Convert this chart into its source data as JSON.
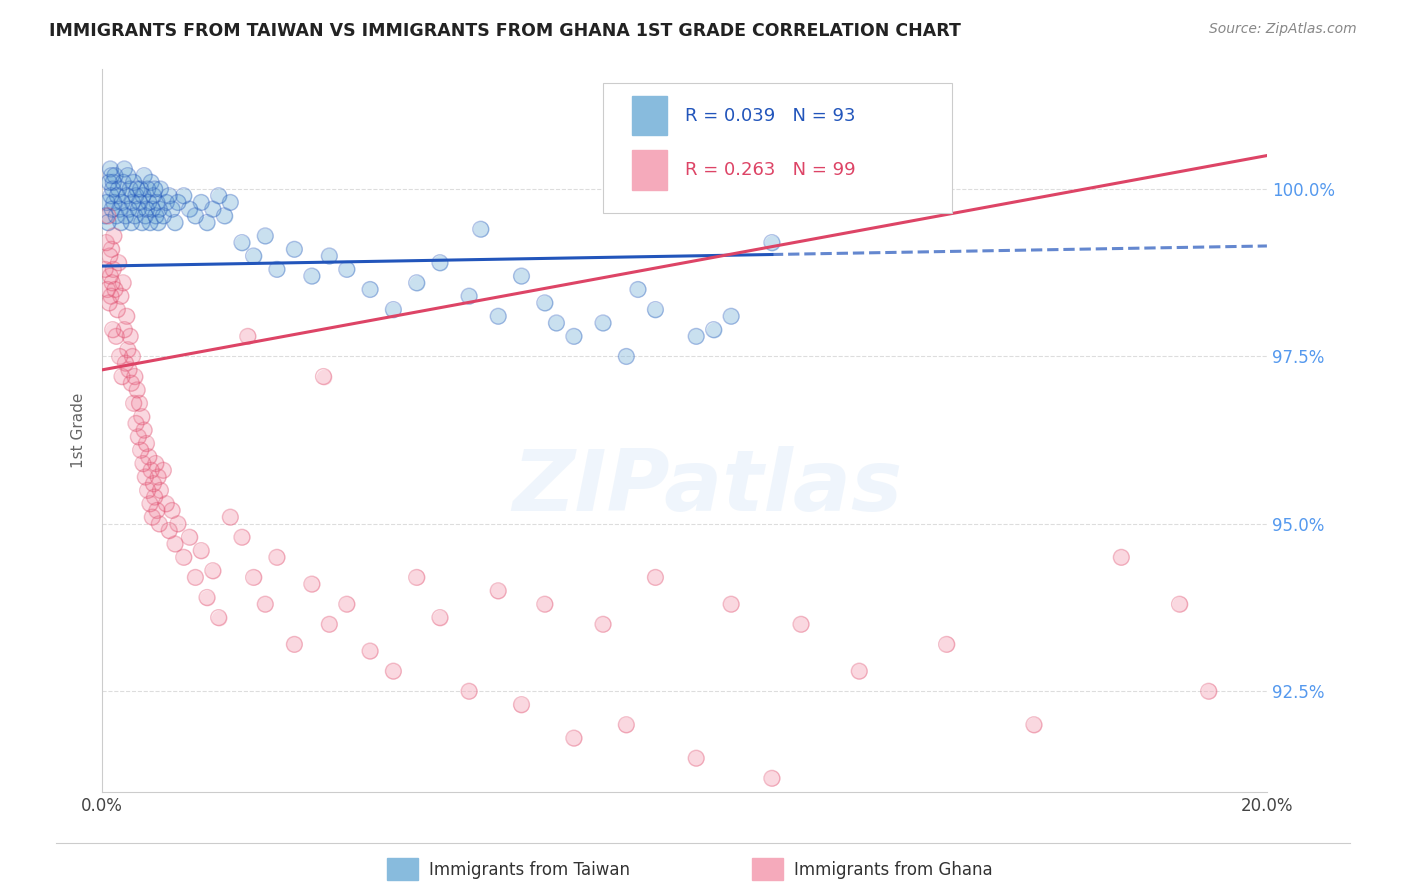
{
  "title": "IMMIGRANTS FROM TAIWAN VS IMMIGRANTS FROM GHANA 1ST GRADE CORRELATION CHART",
  "source": "Source: ZipAtlas.com",
  "ylabel": "1st Grade",
  "xlim": [
    0.0,
    20.0
  ],
  "ylim": [
    91.0,
    101.8
  ],
  "yticks": [
    92.5,
    95.0,
    97.5,
    100.0
  ],
  "ytick_labels": [
    "92.5%",
    "95.0%",
    "97.5%",
    "100.0%"
  ],
  "taiwan_R": 0.039,
  "taiwan_N": 93,
  "ghana_R": 0.263,
  "ghana_N": 99,
  "taiwan_color": "#88bbdd",
  "ghana_color": "#f5aabb",
  "taiwan_line_color": "#2255bb",
  "ghana_line_color": "#dd4466",
  "background_color": "#ffffff",
  "grid_color": "#dddddd",
  "title_color": "#222222",
  "right_axis_color": "#5599ee",
  "watermark": "ZIPatlas",
  "tw_line_x0": 0.0,
  "tw_line_y0": 98.85,
  "tw_line_x1": 20.0,
  "tw_line_y1": 99.15,
  "tw_solid_end": 11.5,
  "gh_line_x0": 0.0,
  "gh_line_y0": 97.3,
  "gh_line_x1": 20.0,
  "gh_line_y1": 100.5,
  "taiwan_scatter_x": [
    0.05,
    0.08,
    0.1,
    0.12,
    0.14,
    0.15,
    0.16,
    0.17,
    0.18,
    0.19,
    0.2,
    0.22,
    0.24,
    0.26,
    0.28,
    0.3,
    0.32,
    0.34,
    0.36,
    0.38,
    0.4,
    0.42,
    0.44,
    0.46,
    0.48,
    0.5,
    0.52,
    0.54,
    0.56,
    0.58,
    0.6,
    0.62,
    0.64,
    0.66,
    0.68,
    0.7,
    0.72,
    0.74,
    0.76,
    0.78,
    0.8,
    0.82,
    0.84,
    0.86,
    0.88,
    0.9,
    0.92,
    0.94,
    0.96,
    0.98,
    1.0,
    1.05,
    1.1,
    1.15,
    1.2,
    1.25,
    1.3,
    1.4,
    1.5,
    1.6,
    1.7,
    1.8,
    1.9,
    2.0,
    2.1,
    2.2,
    2.4,
    2.6,
    2.8,
    3.0,
    3.3,
    3.6,
    3.9,
    4.2,
    4.6,
    5.0,
    5.4,
    5.8,
    6.3,
    6.8,
    7.2,
    7.6,
    8.1,
    8.6,
    9.0,
    9.5,
    10.2,
    10.8,
    11.5,
    6.5,
    7.8,
    9.2,
    10.5
  ],
  "taiwan_scatter_y": [
    99.6,
    99.8,
    99.5,
    100.1,
    100.3,
    99.9,
    100.2,
    99.7,
    100.0,
    100.1,
    99.8,
    100.2,
    99.6,
    99.9,
    100.0,
    99.7,
    99.5,
    99.8,
    100.1,
    100.3,
    99.6,
    99.9,
    100.2,
    99.7,
    100.0,
    99.5,
    99.8,
    100.1,
    99.6,
    99.9,
    100.0,
    99.7,
    99.8,
    100.0,
    99.5,
    99.9,
    100.2,
    99.6,
    99.7,
    100.0,
    99.8,
    99.5,
    100.1,
    99.7,
    99.9,
    100.0,
    99.6,
    99.8,
    99.5,
    99.7,
    100.0,
    99.6,
    99.8,
    99.9,
    99.7,
    99.5,
    99.8,
    99.9,
    99.7,
    99.6,
    99.8,
    99.5,
    99.7,
    99.9,
    99.6,
    99.8,
    99.2,
    99.0,
    99.3,
    98.8,
    99.1,
    98.7,
    99.0,
    98.8,
    98.5,
    98.2,
    98.6,
    98.9,
    98.4,
    98.1,
    98.7,
    98.3,
    97.8,
    98.0,
    97.5,
    98.2,
    97.8,
    98.1,
    99.2,
    99.4,
    98.0,
    98.5,
    97.9
  ],
  "ghana_scatter_x": [
    0.05,
    0.07,
    0.09,
    0.1,
    0.12,
    0.13,
    0.14,
    0.15,
    0.16,
    0.17,
    0.18,
    0.19,
    0.2,
    0.22,
    0.24,
    0.26,
    0.28,
    0.3,
    0.32,
    0.34,
    0.36,
    0.38,
    0.4,
    0.42,
    0.44,
    0.46,
    0.48,
    0.5,
    0.52,
    0.54,
    0.56,
    0.58,
    0.6,
    0.62,
    0.64,
    0.66,
    0.68,
    0.7,
    0.72,
    0.74,
    0.76,
    0.78,
    0.8,
    0.82,
    0.84,
    0.86,
    0.88,
    0.9,
    0.92,
    0.94,
    0.96,
    0.98,
    1.0,
    1.05,
    1.1,
    1.15,
    1.2,
    1.25,
    1.3,
    1.4,
    1.5,
    1.6,
    1.7,
    1.8,
    1.9,
    2.0,
    2.2,
    2.4,
    2.6,
    2.8,
    3.0,
    3.3,
    3.6,
    3.9,
    4.2,
    4.6,
    5.0,
    5.4,
    5.8,
    6.3,
    6.8,
    7.2,
    7.6,
    8.1,
    8.6,
    9.0,
    9.5,
    10.2,
    10.8,
    11.5,
    12.0,
    13.0,
    14.5,
    16.0,
    17.5,
    18.5,
    19.0,
    2.5,
    3.8
  ],
  "ghana_scatter_y": [
    98.8,
    99.2,
    98.5,
    99.6,
    98.3,
    99.0,
    98.7,
    98.4,
    99.1,
    98.6,
    97.9,
    98.8,
    99.3,
    98.5,
    97.8,
    98.2,
    98.9,
    97.5,
    98.4,
    97.2,
    98.6,
    97.9,
    97.4,
    98.1,
    97.6,
    97.3,
    97.8,
    97.1,
    97.5,
    96.8,
    97.2,
    96.5,
    97.0,
    96.3,
    96.8,
    96.1,
    96.6,
    95.9,
    96.4,
    95.7,
    96.2,
    95.5,
    96.0,
    95.3,
    95.8,
    95.1,
    95.6,
    95.4,
    95.9,
    95.2,
    95.7,
    95.0,
    95.5,
    95.8,
    95.3,
    94.9,
    95.2,
    94.7,
    95.0,
    94.5,
    94.8,
    94.2,
    94.6,
    93.9,
    94.3,
    93.6,
    95.1,
    94.8,
    94.2,
    93.8,
    94.5,
    93.2,
    94.1,
    93.5,
    93.8,
    93.1,
    92.8,
    94.2,
    93.6,
    92.5,
    94.0,
    92.3,
    93.8,
    91.8,
    93.5,
    92.0,
    94.2,
    91.5,
    93.8,
    91.2,
    93.5,
    92.8,
    93.2,
    92.0,
    94.5,
    93.8,
    92.5,
    97.8,
    97.2
  ]
}
